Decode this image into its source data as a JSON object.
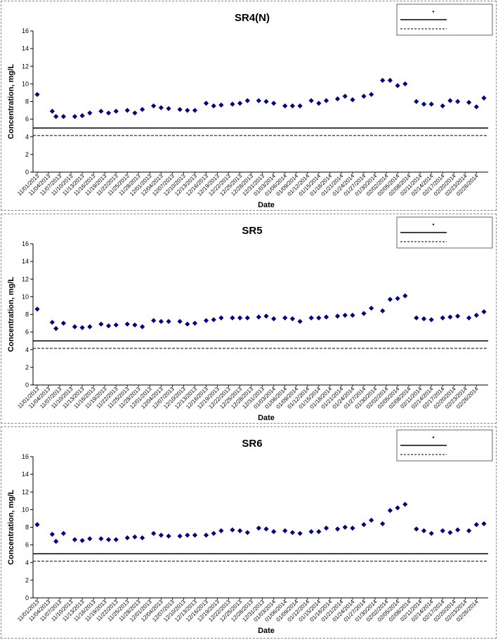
{
  "chart_data": [
    {
      "type": "scatter",
      "title": "SR4(N)",
      "xlabel": "Date",
      "ylabel": "Concentration, mg/L",
      "ylim": [
        0,
        16
      ],
      "yticks": [
        0,
        2,
        4,
        6,
        8,
        10,
        12,
        14,
        16
      ],
      "categories": [
        "11/01/2013",
        "11/04/2013",
        "11/07/2013",
        "11/10/2013",
        "11/13/2013",
        "11/16/2013",
        "11/19/2013",
        "11/22/2013",
        "11/25/2013",
        "11/28/2013",
        "12/01/2013",
        "12/04/2013",
        "12/07/2013",
        "12/10/2013",
        "12/13/2013",
        "12/16/2013",
        "12/19/2013",
        "12/22/2013",
        "12/25/2013",
        "12/28/2013",
        "12/31/2013",
        "01/03/2014",
        "01/06/2014",
        "01/09/2014",
        "01/12/2014",
        "01/15/2014",
        "01/18/2014",
        "01/21/2014",
        "01/24/2014",
        "01/27/2014",
        "01/30/2014",
        "02/02/2014",
        "02/05/2014",
        "02/08/2014",
        "02/11/2014",
        "02/14/2014",
        "02/17/2014",
        "02/20/2014",
        "02/23/2014",
        "02/26/2014"
      ],
      "series": [
        {
          "color": "#000080",
          "marker": "diamond",
          "points": [
            [
              "11/01/2013",
              8.8
            ],
            [
              "11/05/2013",
              6.9
            ],
            [
              "11/06/2013",
              6.3
            ],
            [
              "11/08/2013",
              6.3
            ],
            [
              "11/11/2013",
              6.3
            ],
            [
              "11/13/2013",
              6.4
            ],
            [
              "11/15/2013",
              6.7
            ],
            [
              "11/18/2013",
              6.9
            ],
            [
              "11/20/2013",
              6.7
            ],
            [
              "11/22/2013",
              6.9
            ],
            [
              "11/25/2013",
              7.0
            ],
            [
              "11/27/2013",
              6.7
            ],
            [
              "11/29/2013",
              7.1
            ],
            [
              "12/02/2013",
              7.5
            ],
            [
              "12/04/2013",
              7.3
            ],
            [
              "12/06/2013",
              7.2
            ],
            [
              "12/09/2013",
              7.1
            ],
            [
              "12/11/2013",
              7.0
            ],
            [
              "12/13/2013",
              7.0
            ],
            [
              "12/16/2013",
              7.8
            ],
            [
              "12/18/2013",
              7.5
            ],
            [
              "12/20/2013",
              7.6
            ],
            [
              "12/23/2013",
              7.7
            ],
            [
              "12/25/2013",
              7.8
            ],
            [
              "12/27/2013",
              8.1
            ],
            [
              "12/30/2013",
              8.1
            ],
            [
              "01/01/2014",
              8.0
            ],
            [
              "01/03/2014",
              7.8
            ],
            [
              "01/06/2014",
              7.5
            ],
            [
              "01/08/2014",
              7.5
            ],
            [
              "01/10/2014",
              7.5
            ],
            [
              "01/13/2014",
              8.1
            ],
            [
              "01/15/2014",
              7.8
            ],
            [
              "01/17/2014",
              8.1
            ],
            [
              "01/20/2014",
              8.3
            ],
            [
              "01/22/2014",
              8.6
            ],
            [
              "01/24/2014",
              8.2
            ],
            [
              "01/27/2014",
              8.6
            ],
            [
              "01/29/2014",
              8.8
            ],
            [
              "02/01/2014",
              10.4
            ],
            [
              "02/03/2014",
              10.4
            ],
            [
              "02/05/2014",
              9.8
            ],
            [
              "02/07/2014",
              10.0
            ],
            [
              "02/10/2014",
              8.0
            ],
            [
              "02/12/2014",
              7.7
            ],
            [
              "02/14/2014",
              7.7
            ],
            [
              "02/17/2014",
              7.5
            ],
            [
              "02/19/2014",
              8.1
            ],
            [
              "02/21/2014",
              8.0
            ],
            [
              "02/24/2014",
              7.9
            ],
            [
              "02/26/2014",
              7.4
            ],
            [
              "02/28/2014",
              8.4
            ]
          ]
        }
      ],
      "reference_lines": [
        {
          "y": 5.0,
          "style": "solid"
        },
        {
          "y": 4.15,
          "style": "dashed"
        }
      ],
      "legend": "top-right",
      "grid": false
    },
    {
      "type": "scatter",
      "title": "SR5",
      "xlabel": "Date",
      "ylabel": "Concentration, mg/L",
      "ylim": [
        0,
        16
      ],
      "yticks": [
        0,
        2,
        4,
        6,
        8,
        10,
        12,
        14,
        16
      ],
      "categories": [
        "11/01/2013",
        "11/04/2013",
        "11/07/2013",
        "11/10/2013",
        "11/13/2013",
        "11/16/2013",
        "11/19/2013",
        "11/22/2013",
        "11/25/2013",
        "11/28/2013",
        "12/01/2013",
        "12/04/2013",
        "12/07/2013",
        "12/10/2013",
        "12/13/2013",
        "12/16/2013",
        "12/19/2013",
        "12/22/2013",
        "12/25/2013",
        "12/28/2013",
        "12/31/2013",
        "01/03/2014",
        "01/06/2014",
        "01/09/2014",
        "01/12/2014",
        "01/15/2014",
        "01/18/2014",
        "01/21/2014",
        "01/24/2014",
        "01/27/2014",
        "01/30/2014",
        "02/02/2014",
        "02/05/2014",
        "02/08/2014",
        "02/11/2014",
        "02/14/2014",
        "02/17/2014",
        "02/20/2014",
        "02/23/2014",
        "02/26/2014"
      ],
      "series": [
        {
          "color": "#000080",
          "marker": "diamond",
          "points": [
            [
              "11/01/2013",
              8.6
            ],
            [
              "11/05/2013",
              7.1
            ],
            [
              "11/06/2013",
              6.4
            ],
            [
              "11/08/2013",
              7.0
            ],
            [
              "11/11/2013",
              6.6
            ],
            [
              "11/13/2013",
              6.5
            ],
            [
              "11/15/2013",
              6.6
            ],
            [
              "11/18/2013",
              6.9
            ],
            [
              "11/20/2013",
              6.7
            ],
            [
              "11/22/2013",
              6.8
            ],
            [
              "11/25/2013",
              6.9
            ],
            [
              "11/27/2013",
              6.8
            ],
            [
              "11/29/2013",
              6.6
            ],
            [
              "12/02/2013",
              7.3
            ],
            [
              "12/04/2013",
              7.2
            ],
            [
              "12/06/2013",
              7.2
            ],
            [
              "12/09/2013",
              7.2
            ],
            [
              "12/11/2013",
              6.9
            ],
            [
              "12/13/2013",
              7.0
            ],
            [
              "12/16/2013",
              7.3
            ],
            [
              "12/18/2013",
              7.4
            ],
            [
              "12/20/2013",
              7.6
            ],
            [
              "12/23/2013",
              7.6
            ],
            [
              "12/25/2013",
              7.6
            ],
            [
              "12/27/2013",
              7.6
            ],
            [
              "12/30/2013",
              7.7
            ],
            [
              "01/01/2014",
              7.8
            ],
            [
              "01/03/2014",
              7.5
            ],
            [
              "01/06/2014",
              7.6
            ],
            [
              "01/08/2014",
              7.5
            ],
            [
              "01/10/2014",
              7.2
            ],
            [
              "01/13/2014",
              7.6
            ],
            [
              "01/15/2014",
              7.6
            ],
            [
              "01/17/2014",
              7.7
            ],
            [
              "01/20/2014",
              7.8
            ],
            [
              "01/22/2014",
              7.9
            ],
            [
              "01/24/2014",
              7.9
            ],
            [
              "01/27/2014",
              8.1
            ],
            [
              "01/29/2014",
              8.7
            ],
            [
              "02/01/2014",
              8.4
            ],
            [
              "02/03/2014",
              9.7
            ],
            [
              "02/05/2014",
              9.8
            ],
            [
              "02/07/2014",
              10.1
            ],
            [
              "02/10/2014",
              7.6
            ],
            [
              "02/12/2014",
              7.5
            ],
            [
              "02/14/2014",
              7.4
            ],
            [
              "02/17/2014",
              7.6
            ],
            [
              "02/19/2014",
              7.7
            ],
            [
              "02/21/2014",
              7.8
            ],
            [
              "02/24/2014",
              7.6
            ],
            [
              "02/26/2014",
              7.9
            ],
            [
              "02/28/2014",
              8.3
            ]
          ]
        }
      ],
      "reference_lines": [
        {
          "y": 5.0,
          "style": "solid"
        },
        {
          "y": 4.15,
          "style": "dashed"
        }
      ],
      "legend": "top-right",
      "grid": false
    },
    {
      "type": "scatter",
      "title": "SR6",
      "xlabel": "Date",
      "ylabel": "Concentration, mg/L",
      "ylim": [
        0,
        16
      ],
      "yticks": [
        0,
        2,
        4,
        6,
        8,
        10,
        12,
        14,
        16
      ],
      "categories": [
        "11/01/2013",
        "11/04/2013",
        "11/07/2013",
        "11/10/2013",
        "11/13/2013",
        "11/16/2013",
        "11/19/2013",
        "11/22/2013",
        "11/25/2013",
        "11/28/2013",
        "12/01/2013",
        "12/04/2013",
        "12/07/2013",
        "12/10/2013",
        "12/13/2013",
        "12/16/2013",
        "12/19/2013",
        "12/22/2013",
        "12/25/2013",
        "12/28/2013",
        "12/31/2013",
        "01/03/2014",
        "01/06/2014",
        "01/09/2014",
        "01/12/2014",
        "01/15/2014",
        "01/18/2014",
        "01/21/2014",
        "01/24/2014",
        "01/27/2014",
        "01/30/2014",
        "02/02/2014",
        "02/05/2014",
        "02/08/2014",
        "02/11/2014",
        "02/14/2014",
        "02/17/2014",
        "02/20/2014",
        "02/23/2014",
        "02/26/2014"
      ],
      "series": [
        {
          "color": "#000080",
          "marker": "diamond",
          "points": [
            [
              "11/01/2013",
              8.3
            ],
            [
              "11/05/2013",
              7.2
            ],
            [
              "11/06/2013",
              6.4
            ],
            [
              "11/08/2013",
              7.3
            ],
            [
              "11/11/2013",
              6.6
            ],
            [
              "11/13/2013",
              6.5
            ],
            [
              "11/15/2013",
              6.7
            ],
            [
              "11/18/2013",
              6.7
            ],
            [
              "11/20/2013",
              6.6
            ],
            [
              "11/22/2013",
              6.6
            ],
            [
              "11/25/2013",
              6.8
            ],
            [
              "11/27/2013",
              6.9
            ],
            [
              "11/29/2013",
              6.8
            ],
            [
              "12/02/2013",
              7.3
            ],
            [
              "12/04/2013",
              7.1
            ],
            [
              "12/06/2013",
              7.0
            ],
            [
              "12/09/2013",
              7.0
            ],
            [
              "12/11/2013",
              7.1
            ],
            [
              "12/13/2013",
              7.1
            ],
            [
              "12/16/2013",
              7.1
            ],
            [
              "12/18/2013",
              7.3
            ],
            [
              "12/20/2013",
              7.6
            ],
            [
              "12/23/2013",
              7.7
            ],
            [
              "12/25/2013",
              7.6
            ],
            [
              "12/27/2013",
              7.4
            ],
            [
              "12/30/2013",
              7.9
            ],
            [
              "01/01/2014",
              7.8
            ],
            [
              "01/03/2014",
              7.5
            ],
            [
              "01/06/2014",
              7.6
            ],
            [
              "01/08/2014",
              7.4
            ],
            [
              "01/10/2014",
              7.3
            ],
            [
              "01/13/2014",
              7.5
            ],
            [
              "01/15/2014",
              7.5
            ],
            [
              "01/17/2014",
              7.9
            ],
            [
              "01/20/2014",
              7.8
            ],
            [
              "01/22/2014",
              8.0
            ],
            [
              "01/24/2014",
              7.9
            ],
            [
              "01/27/2014",
              8.3
            ],
            [
              "01/29/2014",
              8.8
            ],
            [
              "02/01/2014",
              8.4
            ],
            [
              "02/03/2014",
              9.9
            ],
            [
              "02/05/2014",
              10.2
            ],
            [
              "02/07/2014",
              10.6
            ],
            [
              "02/10/2014",
              7.8
            ],
            [
              "02/12/2014",
              7.6
            ],
            [
              "02/14/2014",
              7.3
            ],
            [
              "02/17/2014",
              7.6
            ],
            [
              "02/19/2014",
              7.4
            ],
            [
              "02/21/2014",
              7.7
            ],
            [
              "02/24/2014",
              7.6
            ],
            [
              "02/26/2014",
              8.3
            ],
            [
              "02/28/2014",
              8.4
            ]
          ]
        }
      ],
      "reference_lines": [
        {
          "y": 5.0,
          "style": "solid"
        },
        {
          "y": 4.15,
          "style": "dashed"
        }
      ],
      "legend": "top-right",
      "grid": false
    }
  ]
}
